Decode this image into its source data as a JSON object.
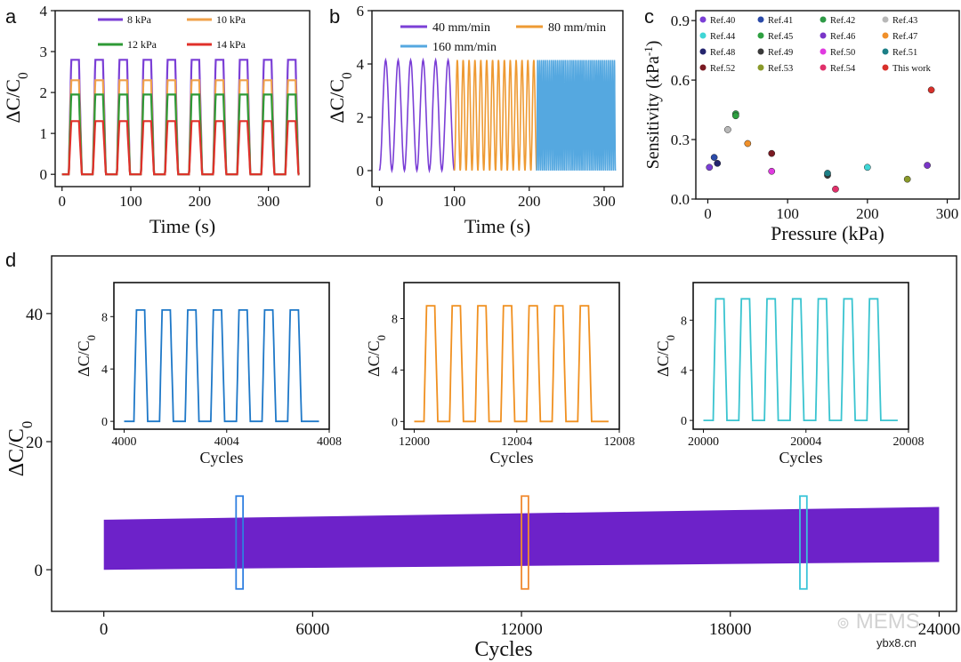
{
  "chart_data": [
    {
      "panel": "a",
      "type": "line",
      "xlabel": "Time (s)",
      "ylabel": "ΔC/C0",
      "xlim": [
        -10,
        360
      ],
      "ylim": [
        -0.3,
        4
      ],
      "xticks": [
        "0",
        "100",
        "200",
        "300"
      ],
      "yticks": [
        "0",
        "1",
        "2",
        "3",
        "4"
      ],
      "period": 35,
      "cycles": 10,
      "start": 7,
      "x_end": 345,
      "series": [
        {
          "name": "8 kPa",
          "color": "#7b3fd6",
          "peak": 2.8
        },
        {
          "name": "10 kPa",
          "color": "#f0a14a",
          "peak": 2.3
        },
        {
          "name": "12 kPa",
          "color": "#2e9a36",
          "peak": 1.95
        },
        {
          "name": "14 kPa",
          "color": "#e0302a",
          "peak": 1.3
        }
      ]
    },
    {
      "panel": "b",
      "type": "line",
      "xlabel": "Time (s)",
      "ylabel": "ΔC/C0",
      "xlim": [
        -10,
        325
      ],
      "ylim": [
        -0.6,
        6
      ],
      "xticks": [
        "0",
        "100",
        "200",
        "300"
      ],
      "yticks": [
        "0",
        "2",
        "4",
        "6"
      ],
      "peak": 4.15,
      "series": [
        {
          "name": "40 mm/min",
          "color": "#7b3fd6",
          "x_start": 0,
          "x_end": 100,
          "cycles": 6
        },
        {
          "name": "80 mm/min",
          "color": "#ee9a33",
          "x_start": 100,
          "x_end": 210,
          "cycles": 14
        },
        {
          "name": "160 mm/min",
          "color": "#55a8e0",
          "x_start": 210,
          "x_end": 315,
          "cycles": 40
        }
      ]
    },
    {
      "panel": "c",
      "type": "scatter",
      "xlabel": "Pressure (kPa)",
      "ylabel": "Sensitivity (kPa-1)",
      "xlim": [
        -15,
        315
      ],
      "ylim": [
        0,
        0.95
      ],
      "xticks": [
        "0",
        "100",
        "200",
        "300"
      ],
      "yticks": [
        "0.0",
        "0.3",
        "0.6",
        "0.9"
      ],
      "points": [
        {
          "name": "Ref.40",
          "color": "#7b3fd6",
          "x": 2,
          "y": 0.16
        },
        {
          "name": "Ref.41",
          "color": "#2b4aa8",
          "x": 8,
          "y": 0.21
        },
        {
          "name": "Ref.42",
          "color": "#2e9a46",
          "x": 35,
          "y": 0.43
        },
        {
          "name": "Ref.43",
          "color": "#b8b8b8",
          "x": 25,
          "y": 0.35
        },
        {
          "name": "Ref.44",
          "color": "#3fd6d6",
          "x": 200,
          "y": 0.16
        },
        {
          "name": "Ref.45",
          "color": "#2ea040",
          "x": 35,
          "y": 0.42
        },
        {
          "name": "Ref.46",
          "color": "#7a35c8",
          "x": 275,
          "y": 0.17
        },
        {
          "name": "Ref.47",
          "color": "#f0902a",
          "x": 50,
          "y": 0.28
        },
        {
          "name": "Ref.48",
          "color": "#25256e",
          "x": 12,
          "y": 0.18
        },
        {
          "name": "Ref.49",
          "color": "#3a3a3a",
          "x": 150,
          "y": 0.12
        },
        {
          "name": "Ref.50",
          "color": "#e03ae0",
          "x": 80,
          "y": 0.14
        },
        {
          "name": "Ref.51",
          "color": "#1c7f86",
          "x": 150,
          "y": 0.13
        },
        {
          "name": "Ref.52",
          "color": "#7a1a22",
          "x": 80,
          "y": 0.23
        },
        {
          "name": "Ref.53",
          "color": "#8a9a2a",
          "x": 250,
          "y": 0.1
        },
        {
          "name": "Ref.54",
          "color": "#e0306a",
          "x": 160,
          "y": 0.05
        },
        {
          "name": "This work",
          "color": "#d8302a",
          "x": 280,
          "y": 0.55
        }
      ]
    },
    {
      "panel": "d",
      "type": "area",
      "xlabel": "Cycles",
      "ylabel": "ΔC/C0",
      "xlim": [
        -1500,
        24500
      ],
      "ylim": [
        -6.5,
        49
      ],
      "xticks": [
        "0",
        "6000",
        "12000",
        "18000",
        "24000"
      ],
      "yticks": [
        "0",
        "20",
        "40"
      ],
      "band": {
        "color": "#6d22c9",
        "x": [
          0,
          24000
        ],
        "upper": [
          7.8,
          9.8
        ],
        "lower": [
          0,
          1.2
        ]
      },
      "highlight_boxes": [
        {
          "x_from": 3800,
          "x_to": 4000,
          "color": "#2f7fe0"
        },
        {
          "x_from": 12000,
          "x_to": 12200,
          "color": "#f08a30"
        },
        {
          "x_from": 20000,
          "x_to": 20200,
          "color": "#3ac4d8"
        }
      ],
      "insets": [
        {
          "color": "#1e78c8",
          "xlabel": "Cycles",
          "ylabel": "ΔC/C0",
          "x0": 4000,
          "xticks": [
            "4000",
            "4004",
            "4008"
          ],
          "yticks": [
            "0",
            "4",
            "8"
          ],
          "peak": 8.5,
          "ylim": [
            -0.6,
            10.6
          ]
        },
        {
          "color": "#f09020",
          "xlabel": "Cycles",
          "ylabel": "ΔC/C0",
          "x0": 12000,
          "xticks": [
            "12000",
            "12004",
            "12008"
          ],
          "yticks": [
            "0",
            "4",
            "8"
          ],
          "peak": 9.0,
          "ylim": [
            -0.6,
            10.8
          ]
        },
        {
          "color": "#3ac4d0",
          "xlabel": "Cycles",
          "ylabel": "ΔC/C0",
          "x0": 20000,
          "xticks": [
            "20000",
            "20004",
            "20008"
          ],
          "yticks": [
            "0",
            "4",
            "8"
          ],
          "peak": 9.7,
          "ylim": [
            -0.7,
            11
          ]
        }
      ]
    }
  ],
  "watermark": {
    "brand": "MEMS",
    "site": "ybx8.cn"
  }
}
